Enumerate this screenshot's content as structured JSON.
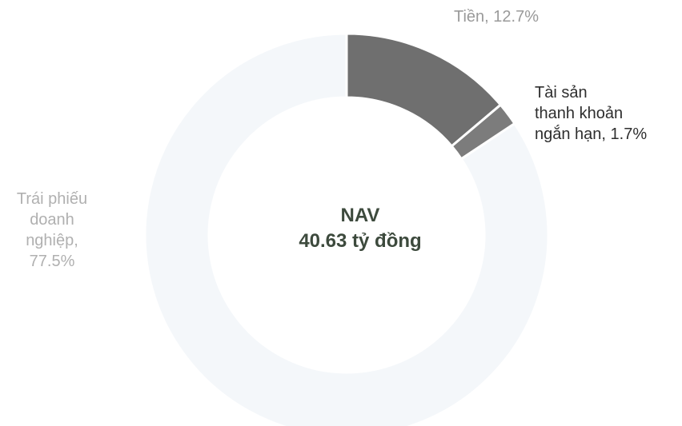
{
  "chart_data": {
    "type": "donut",
    "title": "",
    "center_label": [
      "NAV",
      "40.63 tỷ đồng"
    ],
    "slices": [
      {
        "label": "Tiền",
        "value": 12.7,
        "display": [
          "Tiền, 12.7%"
        ],
        "color": "#6f6f6f",
        "label_color": "#9a9a9a"
      },
      {
        "label": "Tài sản thanh khoản ngắn hạn",
        "value": 1.7,
        "display": [
          "Tài sản",
          "thanh khoản",
          "ngắn hạn, 1.7%"
        ],
        "color": "#7c7c7c",
        "label_color": "#2e2e2e"
      },
      {
        "label": "Trái phiếu doanh nghiệp",
        "value": 77.5,
        "display": [
          "Trái phiếu",
          "doanh",
          "nghiệp,",
          "77.5%"
        ],
        "color": "#f4f7fa",
        "label_color": "#b0b0b0"
      }
    ]
  }
}
